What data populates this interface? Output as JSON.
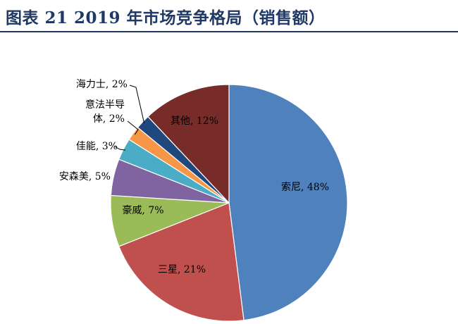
{
  "title": "图表 21   2019 年市场竞争格局（销售额）",
  "chart_data": {
    "type": "pie",
    "title": "",
    "slices": [
      {
        "name": "索尼",
        "value": 48,
        "color": "#4f81bd",
        "label": "索尼, 48%"
      },
      {
        "name": "三星",
        "value": 21,
        "color": "#c0504d",
        "label": "三星, 21%"
      },
      {
        "name": "豪威",
        "value": 7,
        "color": "#9bbb59",
        "label": "豪威, 7%"
      },
      {
        "name": "安森美",
        "value": 5,
        "color": "#8064a2",
        "label": "安森美, 5%"
      },
      {
        "name": "佳能",
        "value": 3,
        "color": "#4bacc6",
        "label": "佳能, 3%"
      },
      {
        "name": "意法半导体",
        "value": 2,
        "color": "#f79646",
        "label": "意法半导体, 2%"
      },
      {
        "name": "海力士",
        "value": 2,
        "color": "#1f497d",
        "label": "海力士, 2%"
      },
      {
        "name": "其他",
        "value": 12,
        "color": "#772c2a",
        "label": "其他, 12%"
      }
    ]
  }
}
